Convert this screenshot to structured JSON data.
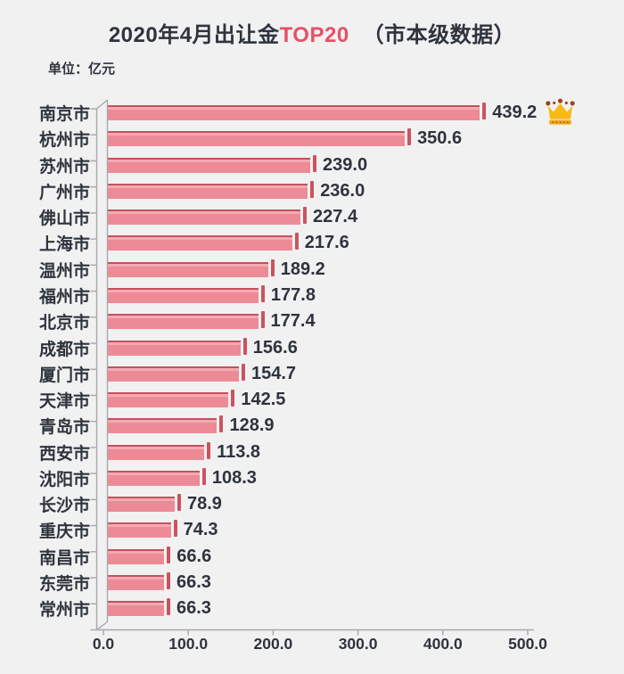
{
  "header": {
    "title_prefix": "2020年4月出让金",
    "title_highlight": "TOP20",
    "title_suffix": "（市本级数据）",
    "unit_label": "单位：亿元"
  },
  "colors": {
    "background": "#f1f1f2",
    "bar_fill": "#ec8b96",
    "bar_top_edge": "#c4515d",
    "bar_highlight": "#f4aab2",
    "bar_end_cap": "#c9545f",
    "title_highlight": "#e85064",
    "text": "#2e333c",
    "axis": "#a7a7ad",
    "crown_gold": "#f7ba16"
  },
  "icons": {
    "crown": "crown-icon"
  },
  "chart_data": {
    "type": "bar",
    "orientation": "horizontal",
    "title": "2020年4月出让金TOP20 （市本级数据）",
    "unit": "亿元",
    "xlim": [
      0,
      500
    ],
    "x_tick_labels": [
      "0.0",
      "100.0",
      "200.0",
      "300.0",
      "400.0",
      "500.0"
    ],
    "grid": false,
    "legend": false,
    "categories": [
      "南京市",
      "杭州市",
      "苏州市",
      "广州市",
      "佛山市",
      "上海市",
      "温州市",
      "福州市",
      "北京市",
      "成都市",
      "厦门市",
      "天津市",
      "青岛市",
      "西安市",
      "沈阳市",
      "长沙市",
      "重庆市",
      "南昌市",
      "东莞市",
      "常州市"
    ],
    "values": [
      439.2,
      350.6,
      239.0,
      236.0,
      227.4,
      217.6,
      189.2,
      177.8,
      177.4,
      156.6,
      154.7,
      142.5,
      128.9,
      113.8,
      108.3,
      78.9,
      74.3,
      66.6,
      66.3,
      66.3
    ],
    "value_labels": [
      "439.2",
      "350.6",
      "239.0",
      "236.0",
      "227.4",
      "217.6",
      "189.2",
      "177.8",
      "177.4",
      "156.6",
      "154.7",
      "142.5",
      "128.9",
      "113.8",
      "108.3",
      "78.9",
      "74.3",
      "66.6",
      "66.3",
      "66.3"
    ],
    "crown_on_index": 0
  }
}
